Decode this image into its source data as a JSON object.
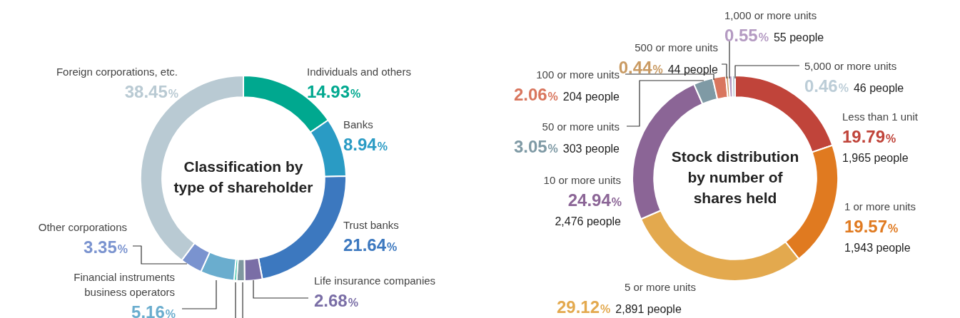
{
  "chart_data": [
    {
      "type": "donut",
      "title": "Classification by type of shareholder",
      "categories": [
        "Individuals and others",
        "Banks",
        "Trust banks",
        "Life insurance companies",
        null,
        null,
        "Financial instruments business operators",
        "Other corporations",
        "Foreign corporations, etc."
      ],
      "values": [
        14.93,
        8.94,
        21.64,
        2.68,
        1.2,
        0.4,
        5.16,
        3.35,
        38.45
      ],
      "colors": [
        "#00a88f",
        "#2a9bc4",
        "#3c78bf",
        "#7a6ea6",
        "#7f97a0",
        "#3cc4a8",
        "#6aadce",
        "#7a93cf",
        "#b9cad3"
      ],
      "value_labels": [
        "14.93%",
        "8.94%",
        "21.64%",
        "2.68%",
        null,
        null,
        "5.16%",
        "3.35%",
        "38.45%"
      ]
    },
    {
      "type": "donut",
      "title": "Stock distribution by number of shares held",
      "categories": [
        "Less than 1 unit",
        "1 or more units",
        "5 or more units",
        "10 or more units",
        "50 or more units",
        "100 or more units",
        "500 or more units",
        "1,000 or more units",
        "5,000 or more units"
      ],
      "values": [
        19.79,
        19.57,
        29.12,
        24.94,
        3.05,
        2.06,
        0.44,
        0.55,
        0.46
      ],
      "colors": [
        "#c0443a",
        "#e07a20",
        "#e3a94e",
        "#8b6596",
        "#7f9aa5",
        "#d9765e",
        "#c99a62",
        "#b49ac2",
        "#bccdd7"
      ],
      "value_labels": [
        "19.79%",
        "19.57%",
        "29.12%",
        "24.94%",
        "3.05%",
        "2.06%",
        "0.44%",
        "0.55%",
        "0.46%"
      ],
      "annotations": [
        {
          "text": "1,965 people",
          "x": "Less than 1 unit"
        },
        {
          "text": "1,943 people",
          "x": "1 or more units"
        },
        {
          "text": "2,891 people",
          "x": "5 or more units"
        },
        {
          "text": "2,476 people",
          "x": "10 or more units"
        },
        {
          "text": "303 people",
          "x": "50 or more units"
        },
        {
          "text": "204 people",
          "x": "100 or more units"
        },
        {
          "text": "44 people",
          "x": "500 or more units"
        },
        {
          "text": "55 people",
          "x": "1,000 or more units"
        },
        {
          "text": "46 people",
          "x": "5,000 or more units"
        }
      ]
    }
  ]
}
